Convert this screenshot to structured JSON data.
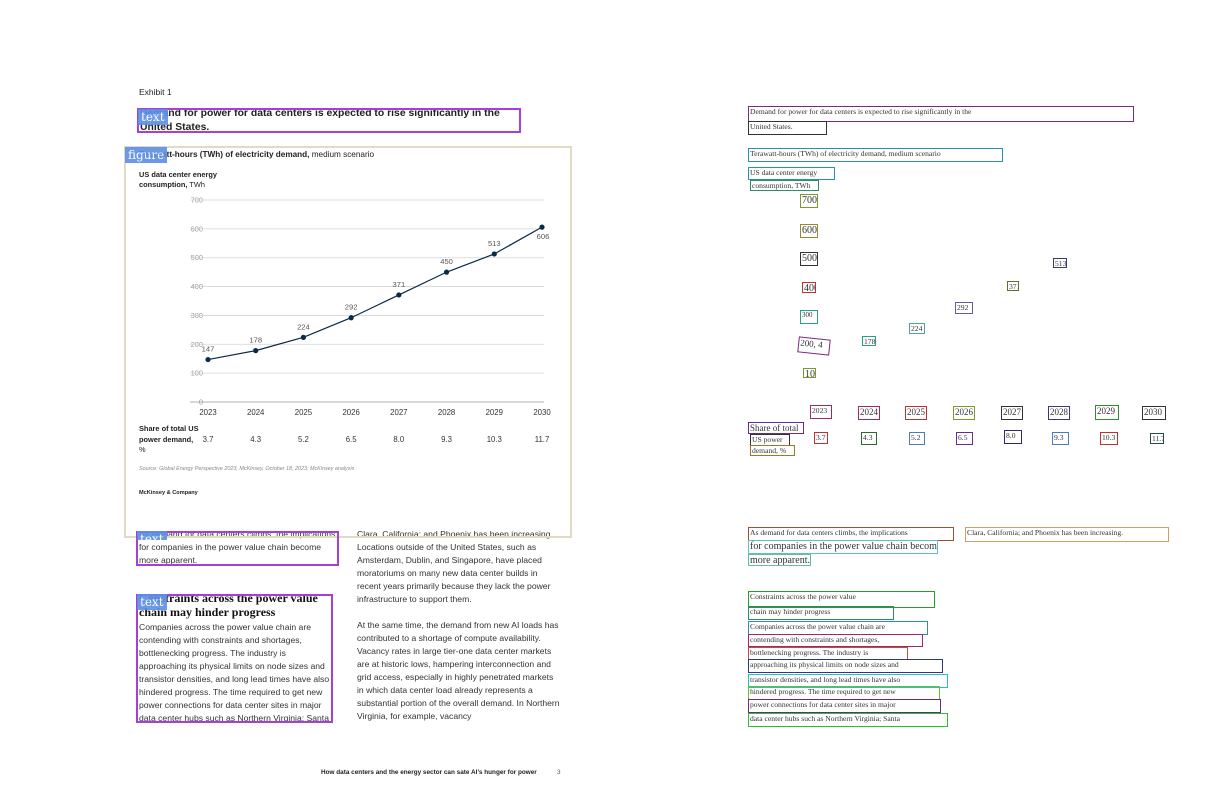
{
  "exhibit": "Exhibit 1",
  "heading": "Demand for power for data centers is expected to rise significantly in the United States.",
  "tags": {
    "heading": "text",
    "figure": "figure",
    "body1": "text",
    "body2": "text"
  },
  "chart_data": {
    "type": "line",
    "subtitle_bold": "Terawatt-hours (TWh) of electricity demand,",
    "subtitle_rest": " medium scenario",
    "y_label_bold": "US data center energy consumption,",
    "y_label_unit": " TWh",
    "categories": [
      "2023",
      "2024",
      "2025",
      "2026",
      "2027",
      "2028",
      "2029",
      "2030"
    ],
    "series": [
      {
        "color": "#0b2a4a",
        "values": [
          147,
          178,
          224,
          292,
          371,
          450,
          513,
          606
        ]
      }
    ],
    "ylim": [
      0,
      700
    ],
    "yticks": [
      0,
      100,
      200,
      300,
      400,
      500,
      600,
      700
    ],
    "grid": true,
    "share_label_bold": "Share of total US power demand,",
    "share_unit": " %",
    "share_values": [
      "3.7",
      "4.3",
      "5.2",
      "6.5",
      "8.0",
      "9.3",
      "10.3",
      "11.7"
    ],
    "source": "Source: Global Energy Perspective 2023, McKinsey, October 18, 2023; McKinsey analysis",
    "brand": "McKinsey & Company"
  },
  "body": {
    "col1_intro": "As demand for data centers climbs, the implications for companies in the power value chain become more apparent.",
    "col1_heading": "Constraints across the power value chain may hinder progress",
    "col1_paragraph": "Companies across the power value chain are contending with constraints and shortages, bottlenecking progress. The industry is approaching its physical limits on node sizes and transistor densities, and long lead times have also hindered progress. The time required to get new power connections for data center sites in major data center hubs such as Northern Virginia; Santa",
    "col2_paragraph1": "Clara, California; and Phoenix has been increasing. Locations outside of the United States, such as Amsterdam, Dublin, and Singapore, have placed moratoriums on many new data center builds in recent years primarily because they lack the power infrastructure to support them.",
    "col2_paragraph2": "At the same time, the demand from new AI loads has contributed to a shortage of compute availability. Vacancy rates in large tier-one data center markets are at historic lows, hampering interconnection and grid access, especially in highly penetrated markets in which data center load already represents a substantial portion of the overall demand. In Northern Virginia, for example, vacancy"
  },
  "footer": {
    "title": "How data centers and the energy sector can sate AI’s hunger for power",
    "page": "3"
  },
  "ocr_boxes": [
    "Demand for power for data centers is expected to rise significantly in the",
    "United States.",
    "Terawatt-hours (TWh) of electricity demand, medium scenario",
    "US data center energy",
    "consumption, TWh",
    "700",
    "600",
    "500",
    "400",
    "300",
    "200, 4",
    "100",
    "178",
    "224",
    "292",
    "371",
    "513",
    "2023",
    "2024",
    "2025",
    "2026",
    "2027",
    "2028",
    "2029",
    "2030",
    "Share of total",
    "US power",
    "demand, %",
    "3.7",
    "4.3",
    "5.2",
    "6.5",
    "8.0",
    "9.3",
    "10.3",
    "11.7",
    "As demand for data centers climbs, the implications",
    "Clara, California; and Phoenix has been increasing.",
    "for companies in the power value chain become",
    "more apparent.",
    "Constraints across the power value",
    "chain may hinder progress",
    "Companies across the power value chain are",
    "contending with constraints and shortages,",
    "bottlenecking progress. The industry is",
    "approaching its physical limits on node sizes and",
    "transistor densities, and long lead times have also",
    "hindered progress. The time required to get new",
    "power connections for data center sites in major",
    "data center hubs such as Northern Virginia; Santa"
  ]
}
